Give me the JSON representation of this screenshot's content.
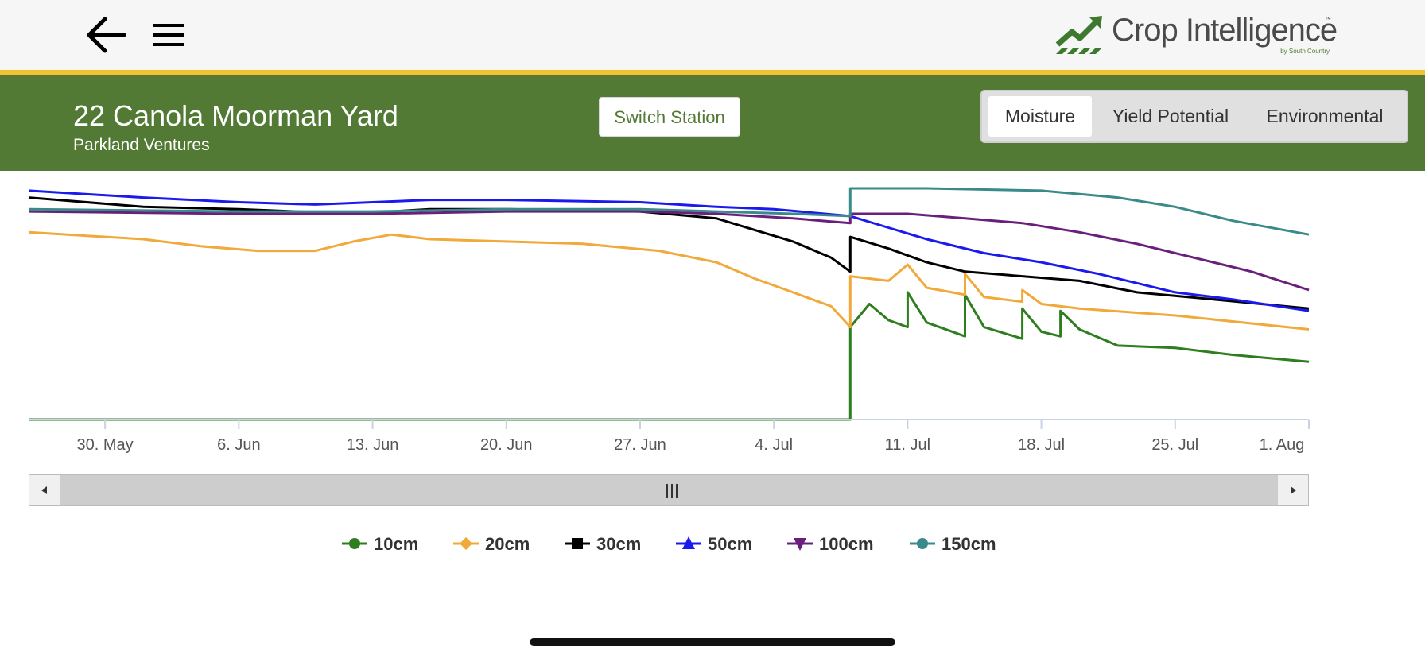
{
  "app": {
    "logo_text": "Crop Intelligence",
    "logo_subtext": "by South Country",
    "logo_tm": "™",
    "brand_green": "#527a34",
    "accent_yellow": "#f2c230"
  },
  "station": {
    "title": "22 Canola Moorman Yard",
    "subtitle": "Parkland Ventures",
    "switch_label": "Switch Station"
  },
  "tabs": [
    {
      "label": "Moisture",
      "active": true
    },
    {
      "label": "Yield Potential",
      "active": false
    },
    {
      "label": "Environmental",
      "active": false
    }
  ],
  "navigator": {
    "grip_label": "|||"
  },
  "chart_data": {
    "type": "line",
    "title": "",
    "xlabel": "",
    "ylabel": "",
    "x_tick_labels": [
      "30. May",
      "6. Jun",
      "13. Jun",
      "20. Jun",
      "27. Jun",
      "4. Jul",
      "11. Jul",
      "18. Jul",
      "25. Jul",
      "1. Aug"
    ],
    "x_range": [
      "2023-05-26",
      "2023-08-01"
    ],
    "y_axis_labels_visible": false,
    "grid": false,
    "legend_position": "bottom",
    "y_note": "relative moisture level (0 = bottom of plot area, 100 = top); y axis not labeled",
    "series": [
      {
        "name": "10cm",
        "color": "#2e7d1e",
        "marker": "circle",
        "points": [
          [
            "2023-05-26",
            0
          ],
          [
            "2023-07-08",
            0
          ],
          [
            "2023-07-08",
            40
          ],
          [
            "2023-07-09",
            50
          ],
          [
            "2023-07-10",
            43
          ],
          [
            "2023-07-11",
            40
          ],
          [
            "2023-07-11",
            55
          ],
          [
            "2023-07-12",
            42
          ],
          [
            "2023-07-14",
            36
          ],
          [
            "2023-07-14",
            54
          ],
          [
            "2023-07-15",
            40
          ],
          [
            "2023-07-17",
            35
          ],
          [
            "2023-07-17",
            48
          ],
          [
            "2023-07-18",
            38
          ],
          [
            "2023-07-19",
            36
          ],
          [
            "2023-07-19",
            47
          ],
          [
            "2023-07-20",
            39
          ],
          [
            "2023-07-22",
            32
          ],
          [
            "2023-07-25",
            31
          ],
          [
            "2023-07-28",
            28
          ],
          [
            "2023-08-01",
            25
          ]
        ]
      },
      {
        "name": "20cm",
        "color": "#f0a93a",
        "marker": "diamond",
        "points": [
          [
            "2023-05-26",
            81
          ],
          [
            "2023-06-01",
            78
          ],
          [
            "2023-06-04",
            75
          ],
          [
            "2023-06-07",
            73
          ],
          [
            "2023-06-10",
            73
          ],
          [
            "2023-06-12",
            77
          ],
          [
            "2023-06-14",
            80
          ],
          [
            "2023-06-16",
            78
          ],
          [
            "2023-06-20",
            77
          ],
          [
            "2023-06-24",
            76
          ],
          [
            "2023-06-28",
            73
          ],
          [
            "2023-07-01",
            68
          ],
          [
            "2023-07-03",
            61
          ],
          [
            "2023-07-05",
            55
          ],
          [
            "2023-07-07",
            49
          ],
          [
            "2023-07-08",
            40
          ],
          [
            "2023-07-08",
            62
          ],
          [
            "2023-07-10",
            60
          ],
          [
            "2023-07-11",
            67
          ],
          [
            "2023-07-12",
            57
          ],
          [
            "2023-07-14",
            54
          ],
          [
            "2023-07-14",
            63
          ],
          [
            "2023-07-15",
            53
          ],
          [
            "2023-07-17",
            51
          ],
          [
            "2023-07-17",
            56
          ],
          [
            "2023-07-18",
            50
          ],
          [
            "2023-07-20",
            48
          ],
          [
            "2023-07-25",
            45
          ],
          [
            "2023-08-01",
            39
          ]
        ]
      },
      {
        "name": "30cm",
        "color": "#000000",
        "marker": "square",
        "points": [
          [
            "2023-05-26",
            96
          ],
          [
            "2023-06-01",
            92
          ],
          [
            "2023-06-06",
            91
          ],
          [
            "2023-06-12",
            89
          ],
          [
            "2023-06-16",
            91
          ],
          [
            "2023-06-20",
            91
          ],
          [
            "2023-06-27",
            90
          ],
          [
            "2023-07-01",
            87
          ],
          [
            "2023-07-03",
            82
          ],
          [
            "2023-07-05",
            77
          ],
          [
            "2023-07-07",
            70
          ],
          [
            "2023-07-08",
            64
          ],
          [
            "2023-07-08",
            79
          ],
          [
            "2023-07-10",
            74
          ],
          [
            "2023-07-12",
            68
          ],
          [
            "2023-07-14",
            64
          ],
          [
            "2023-07-17",
            62
          ],
          [
            "2023-07-20",
            60
          ],
          [
            "2023-07-23",
            55
          ],
          [
            "2023-07-27",
            52
          ],
          [
            "2023-08-01",
            48
          ]
        ]
      },
      {
        "name": "50cm",
        "color": "#1a1aee",
        "marker": "triangle",
        "points": [
          [
            "2023-05-26",
            99
          ],
          [
            "2023-06-01",
            96
          ],
          [
            "2023-06-06",
            94
          ],
          [
            "2023-06-10",
            93
          ],
          [
            "2023-06-16",
            95
          ],
          [
            "2023-06-20",
            95
          ],
          [
            "2023-06-27",
            94
          ],
          [
            "2023-07-01",
            92
          ],
          [
            "2023-07-04",
            91
          ],
          [
            "2023-07-08",
            88
          ],
          [
            "2023-07-10",
            83
          ],
          [
            "2023-07-12",
            78
          ],
          [
            "2023-07-15",
            72
          ],
          [
            "2023-07-18",
            68
          ],
          [
            "2023-07-21",
            63
          ],
          [
            "2023-07-25",
            55
          ],
          [
            "2023-07-28",
            52
          ],
          [
            "2023-08-01",
            47
          ]
        ]
      },
      {
        "name": "100cm",
        "color": "#6b1f7c",
        "marker": "triangle-down",
        "points": [
          [
            "2023-05-26",
            90
          ],
          [
            "2023-06-06",
            89
          ],
          [
            "2023-06-13",
            89
          ],
          [
            "2023-06-20",
            90
          ],
          [
            "2023-06-27",
            90
          ],
          [
            "2023-07-01",
            89
          ],
          [
            "2023-07-05",
            87
          ],
          [
            "2023-07-08",
            85
          ],
          [
            "2023-07-08",
            89
          ],
          [
            "2023-07-11",
            89
          ],
          [
            "2023-07-14",
            87
          ],
          [
            "2023-07-17",
            85
          ],
          [
            "2023-07-20",
            81
          ],
          [
            "2023-07-23",
            76
          ],
          [
            "2023-07-26",
            70
          ],
          [
            "2023-07-29",
            64
          ],
          [
            "2023-08-01",
            56
          ]
        ]
      },
      {
        "name": "150cm",
        "color": "#3a8a8a",
        "marker": "circle",
        "points": [
          [
            "2023-05-26",
            91
          ],
          [
            "2023-06-06",
            90
          ],
          [
            "2023-06-13",
            90
          ],
          [
            "2023-06-20",
            91
          ],
          [
            "2023-06-27",
            91
          ],
          [
            "2023-07-01",
            90
          ],
          [
            "2023-07-05",
            89
          ],
          [
            "2023-07-08",
            88
          ],
          [
            "2023-07-08",
            100
          ],
          [
            "2023-07-12",
            100
          ],
          [
            "2023-07-18",
            99
          ],
          [
            "2023-07-22",
            96
          ],
          [
            "2023-07-25",
            92
          ],
          [
            "2023-07-28",
            86
          ],
          [
            "2023-08-01",
            80
          ]
        ]
      }
    ]
  }
}
